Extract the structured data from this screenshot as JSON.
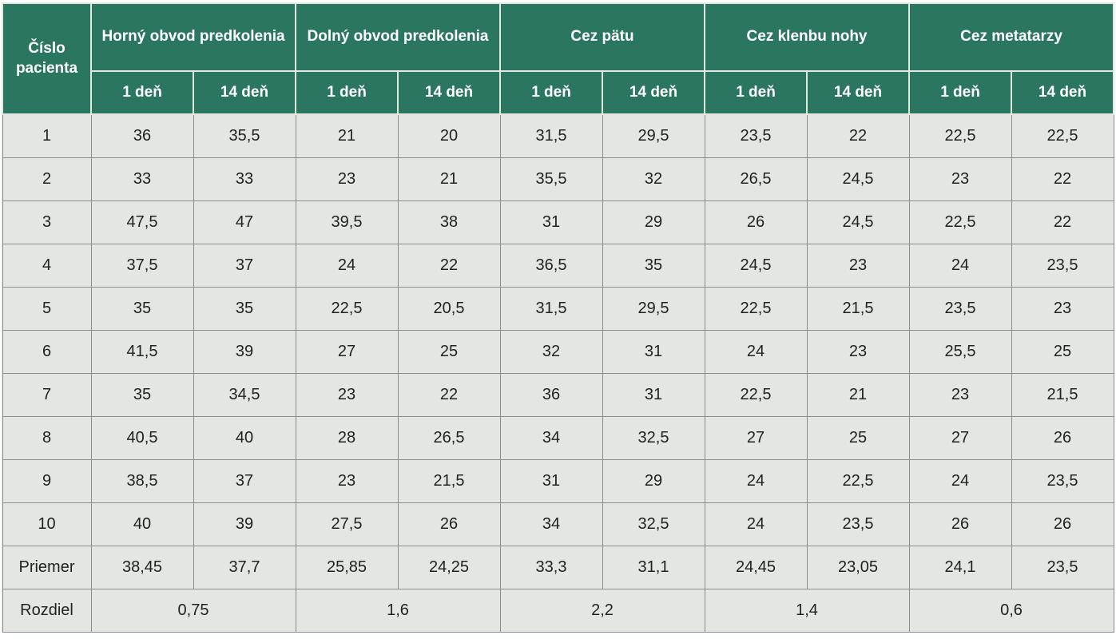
{
  "table": {
    "header": {
      "patient": "Číslo pacienta",
      "groups": [
        "Horný obvod predkolenia",
        "Dolný obvod predkolenia",
        "Cez pätu",
        "Cez klenbu nohy",
        "Cez metatarzy"
      ],
      "subheaders": [
        "1 deň",
        "14 deň",
        "1 deň",
        "14 deň",
        "1 deň",
        "14 deň",
        "1 deň",
        "14 deň",
        "1 deň",
        "14 deň"
      ]
    },
    "rows": [
      [
        "1",
        "36",
        "35,5",
        "21",
        "20",
        "31,5",
        "29,5",
        "23,5",
        "22",
        "22,5",
        "22,5"
      ],
      [
        "2",
        "33",
        "33",
        "23",
        "21",
        "35,5",
        "32",
        "26,5",
        "24,5",
        "23",
        "22"
      ],
      [
        "3",
        "47,5",
        "47",
        "39,5",
        "38",
        "31",
        "29",
        "26",
        "24,5",
        "22,5",
        "22"
      ],
      [
        "4",
        "37,5",
        "37",
        "24",
        "22",
        "36,5",
        "35",
        "24,5",
        "23",
        "24",
        "23,5"
      ],
      [
        "5",
        "35",
        "35",
        "22,5",
        "20,5",
        "31,5",
        "29,5",
        "22,5",
        "21,5",
        "23,5",
        "23"
      ],
      [
        "6",
        "41,5",
        "39",
        "27",
        "25",
        "32",
        "31",
        "24",
        "23",
        "25,5",
        "25"
      ],
      [
        "7",
        "35",
        "34,5",
        "23",
        "22",
        "36",
        "31",
        "22,5",
        "21",
        "23",
        "21,5"
      ],
      [
        "8",
        "40,5",
        "40",
        "28",
        "26,5",
        "34",
        "32,5",
        "27",
        "25",
        "27",
        "26"
      ],
      [
        "9",
        "38,5",
        "37",
        "23",
        "21,5",
        "31",
        "29",
        "24",
        "22,5",
        "24",
        "23,5"
      ],
      [
        "10",
        "40",
        "39",
        "27,5",
        "26",
        "34",
        "32,5",
        "24",
        "23,5",
        "26",
        "26"
      ]
    ],
    "average": {
      "label": "Priemer",
      "values": [
        "38,45",
        "37,7",
        "25,85",
        "24,25",
        "33,3",
        "31,1",
        "24,45",
        "23,05",
        "24,1",
        "23,5"
      ]
    },
    "difference": {
      "label": "Rozdiel",
      "values": [
        "0,75",
        "1,6",
        "2,2",
        "1,4",
        "0,6"
      ]
    }
  }
}
